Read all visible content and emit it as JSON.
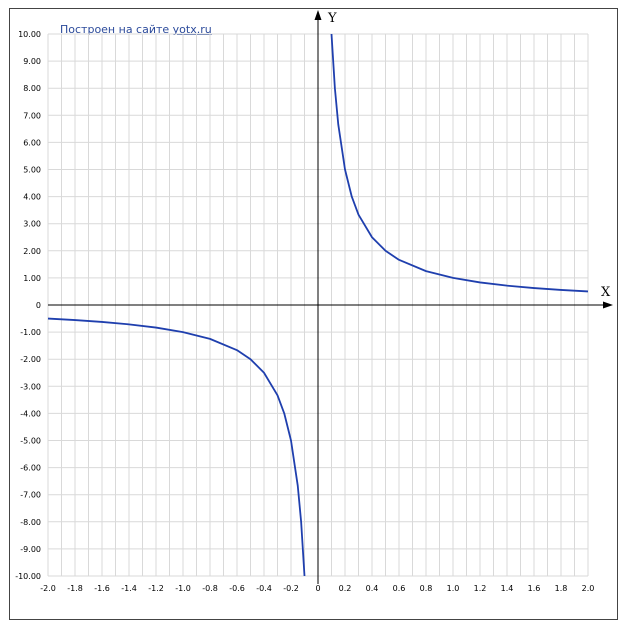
{
  "credit": {
    "text": "Построен на сайте ",
    "link": "yotx.ru"
  },
  "chart_data": {
    "type": "line",
    "function": "y = 1/x",
    "xlabel": "X",
    "ylabel": "Y",
    "xlim": [
      -2.0,
      2.0
    ],
    "ylim": [
      -10.0,
      10.0
    ],
    "grid": true,
    "x_ticks": [
      "-2.0",
      "-1.8",
      "-1.6",
      "-1.4",
      "-1.2",
      "-1.0",
      "-0.8",
      "-0.6",
      "-0.4",
      "-0.2",
      "0",
      "0.2",
      "0.4",
      "0.6",
      "0.8",
      "1.0",
      "1.2",
      "1.4",
      "1.6",
      "1.8",
      "2.0"
    ],
    "y_ticks": [
      "10.00",
      "9.00",
      "8.00",
      "7.00",
      "6.00",
      "5.00",
      "4.00",
      "3.00",
      "2.00",
      "1.00",
      "0",
      "-1.00",
      "-2.00",
      "-3.00",
      "-4.00",
      "-5.00",
      "-6.00",
      "-7.00",
      "-8.00",
      "-9.00",
      "-10.00"
    ],
    "series": [
      {
        "color": "#1f3fae",
        "points": [
          [
            -2.0,
            -0.5
          ],
          [
            -1.8,
            -0.556
          ],
          [
            -1.6,
            -0.625
          ],
          [
            -1.4,
            -0.714
          ],
          [
            -1.2,
            -0.833
          ],
          [
            -1.0,
            -1.0
          ],
          [
            -0.8,
            -1.25
          ],
          [
            -0.6,
            -1.667
          ],
          [
            -0.5,
            -2.0
          ],
          [
            -0.4,
            -2.5
          ],
          [
            -0.3,
            -3.333
          ],
          [
            -0.25,
            -4.0
          ],
          [
            -0.2,
            -5.0
          ],
          [
            -0.15,
            -6.667
          ],
          [
            -0.125,
            -8.0
          ],
          [
            -0.1,
            -10.0
          ]
        ]
      },
      {
        "color": "#1f3fae",
        "points": [
          [
            0.1,
            10.0
          ],
          [
            0.125,
            8.0
          ],
          [
            0.15,
            6.667
          ],
          [
            0.2,
            5.0
          ],
          [
            0.25,
            4.0
          ],
          [
            0.3,
            3.333
          ],
          [
            0.4,
            2.5
          ],
          [
            0.5,
            2.0
          ],
          [
            0.6,
            1.667
          ],
          [
            0.8,
            1.25
          ],
          [
            1.0,
            1.0
          ],
          [
            1.2,
            0.833
          ],
          [
            1.4,
            0.714
          ],
          [
            1.6,
            0.625
          ],
          [
            1.8,
            0.556
          ],
          [
            2.0,
            0.5
          ]
        ]
      }
    ]
  }
}
